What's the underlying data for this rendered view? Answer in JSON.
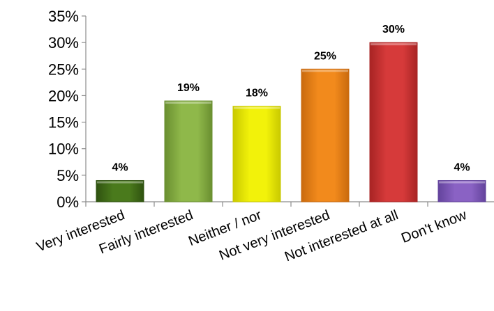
{
  "chart_data": {
    "type": "bar",
    "categories": [
      "Very interested",
      "Fairly interested",
      "Neither / nor",
      "Not very interested",
      "Not interested at all",
      "Don't know"
    ],
    "values": [
      4,
      19,
      18,
      25,
      30,
      4
    ],
    "value_labels": [
      "4%",
      "19%",
      "18%",
      "25%",
      "30%",
      "4%"
    ],
    "ylim": [
      0,
      35
    ],
    "yticks": [
      0,
      5,
      10,
      15,
      20,
      25,
      30,
      35
    ],
    "ytick_labels": [
      "0%",
      "5%",
      "10%",
      "15%",
      "20%",
      "25%",
      "30%",
      "35%"
    ],
    "grid": false,
    "legend": "none",
    "bar_colors": [
      "#4a7a1c",
      "#8fb84a",
      "#f2f20a",
      "#f28a1c",
      "#d63a3a",
      "#8a62c4"
    ],
    "bar_colors_dark": [
      "#2f5210",
      "#6a8f30",
      "#c9c900",
      "#c96a0e",
      "#a82424",
      "#63439c"
    ]
  }
}
